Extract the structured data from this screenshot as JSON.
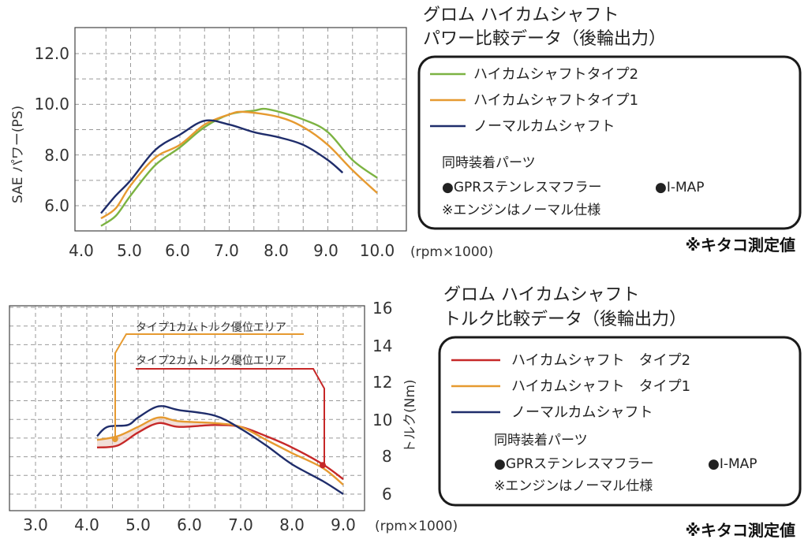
{
  "chart_data": [
    {
      "type": "line",
      "title_lines": [
        "グロム ハイカムシャフト",
        "パワー比較データ（後輪出力）"
      ],
      "xlabel": "(rpm×1000)",
      "ylabel": "SAE パワー(PS)",
      "x_ticks": [
        "4.0",
        "5.0",
        "6.0",
        "7.0",
        "8.0",
        "9.0",
        "10.0"
      ],
      "y_ticks": [
        "6.0",
        "8.0",
        "10.0",
        "12.0"
      ],
      "xlim": [
        4.0,
        10.5
      ],
      "ylim": [
        5.0,
        13.0
      ],
      "series": [
        {
          "name": "ハイカムシャフトタイプ2",
          "color": "#7cb342",
          "x": [
            4.4,
            4.7,
            5.0,
            5.5,
            6.0,
            6.5,
            7.0,
            7.5,
            7.8,
            8.5,
            9.0,
            9.5,
            10.0
          ],
          "y": [
            5.2,
            5.6,
            6.4,
            7.6,
            8.3,
            9.1,
            9.6,
            9.75,
            9.8,
            9.4,
            8.9,
            7.8,
            7.1
          ]
        },
        {
          "name": "ハイカムシャフトタイプ1",
          "color": "#e69a30",
          "x": [
            4.4,
            4.7,
            5.0,
            5.5,
            6.0,
            6.5,
            7.0,
            7.3,
            8.0,
            8.5,
            9.0,
            9.5,
            10.0
          ],
          "y": [
            5.5,
            5.9,
            6.8,
            7.9,
            8.4,
            9.2,
            9.6,
            9.7,
            9.5,
            9.1,
            8.4,
            7.4,
            6.5
          ]
        },
        {
          "name": "ノーマルカムシャフト",
          "color": "#1f2d6b",
          "x": [
            4.4,
            4.7,
            5.0,
            5.5,
            6.0,
            6.5,
            7.0,
            7.5,
            8.0,
            8.5,
            9.0,
            9.3
          ],
          "y": [
            5.7,
            6.4,
            7.0,
            8.2,
            8.8,
            9.35,
            9.2,
            8.9,
            8.7,
            8.4,
            7.8,
            7.3
          ]
        }
      ]
    },
    {
      "type": "line",
      "title_lines": [
        "グロム ハイカムシャフト",
        "トルク比較データ（後輪出力）"
      ],
      "xlabel": "(rpm×1000)",
      "ylabel": "トルク(Nm)",
      "x_ticks": [
        "3.0",
        "4.0",
        "5.0",
        "6.0",
        "7.0",
        "8.0",
        "9.0"
      ],
      "y_ticks": [
        "6",
        "8",
        "10",
        "12",
        "14",
        "16"
      ],
      "xlim": [
        2.7,
        9.3
      ],
      "ylim": [
        5.0,
        16.3
      ],
      "series": [
        {
          "name": "ハイカムシャフト　タイプ2",
          "color": "#c62828",
          "x": [
            4.2,
            4.6,
            5.0,
            5.4,
            5.8,
            6.5,
            7.0,
            7.5,
            8.0,
            8.6,
            9.0
          ],
          "y": [
            8.5,
            8.6,
            9.3,
            9.8,
            9.6,
            9.7,
            9.6,
            9.1,
            8.5,
            7.6,
            6.8
          ]
        },
        {
          "name": "ハイカムシャフト　タイプ1",
          "color": "#e69a30",
          "x": [
            4.2,
            4.6,
            5.0,
            5.4,
            5.8,
            6.5,
            7.0,
            7.5,
            8.0,
            8.6,
            9.0
          ],
          "y": [
            8.9,
            9.1,
            9.6,
            10.1,
            9.9,
            9.8,
            9.6,
            8.9,
            8.2,
            7.4,
            6.5
          ]
        },
        {
          "name": "ノーマルカムシャフト",
          "color": "#1f2d6b",
          "x": [
            4.2,
            4.4,
            4.8,
            5.0,
            5.4,
            5.8,
            6.5,
            7.0,
            7.5,
            8.0,
            8.6,
            9.0
          ],
          "y": [
            9.1,
            9.6,
            9.7,
            10.1,
            10.7,
            10.5,
            10.2,
            9.5,
            8.6,
            7.6,
            6.7,
            6.0
          ]
        }
      ],
      "annotations": [
        {
          "text": "タイプ1カムトルク優位エリア",
          "color": "#e69a30",
          "x": 4.55,
          "y": 8.95
        },
        {
          "text": "タイプ2カムトルク優位エリア",
          "color": "#c62828",
          "x": 8.6,
          "y": 7.55
        }
      ]
    }
  ],
  "legend_boxes": [
    {
      "parts_heading": "同時装着パーツ",
      "parts_items": [
        "●GPRステンレスマフラー",
        "●I-MAP"
      ],
      "engine_note": "※エンジンはノーマル仕様"
    },
    {
      "parts_heading": "同時装着パーツ",
      "parts_items": [
        "●GPRステンレスマフラー",
        "●I-MAP"
      ],
      "engine_note": "※エンジンはノーマル仕様"
    }
  ],
  "measurement_notes": [
    "※キタコ測定値",
    "※キタコ測定値"
  ]
}
